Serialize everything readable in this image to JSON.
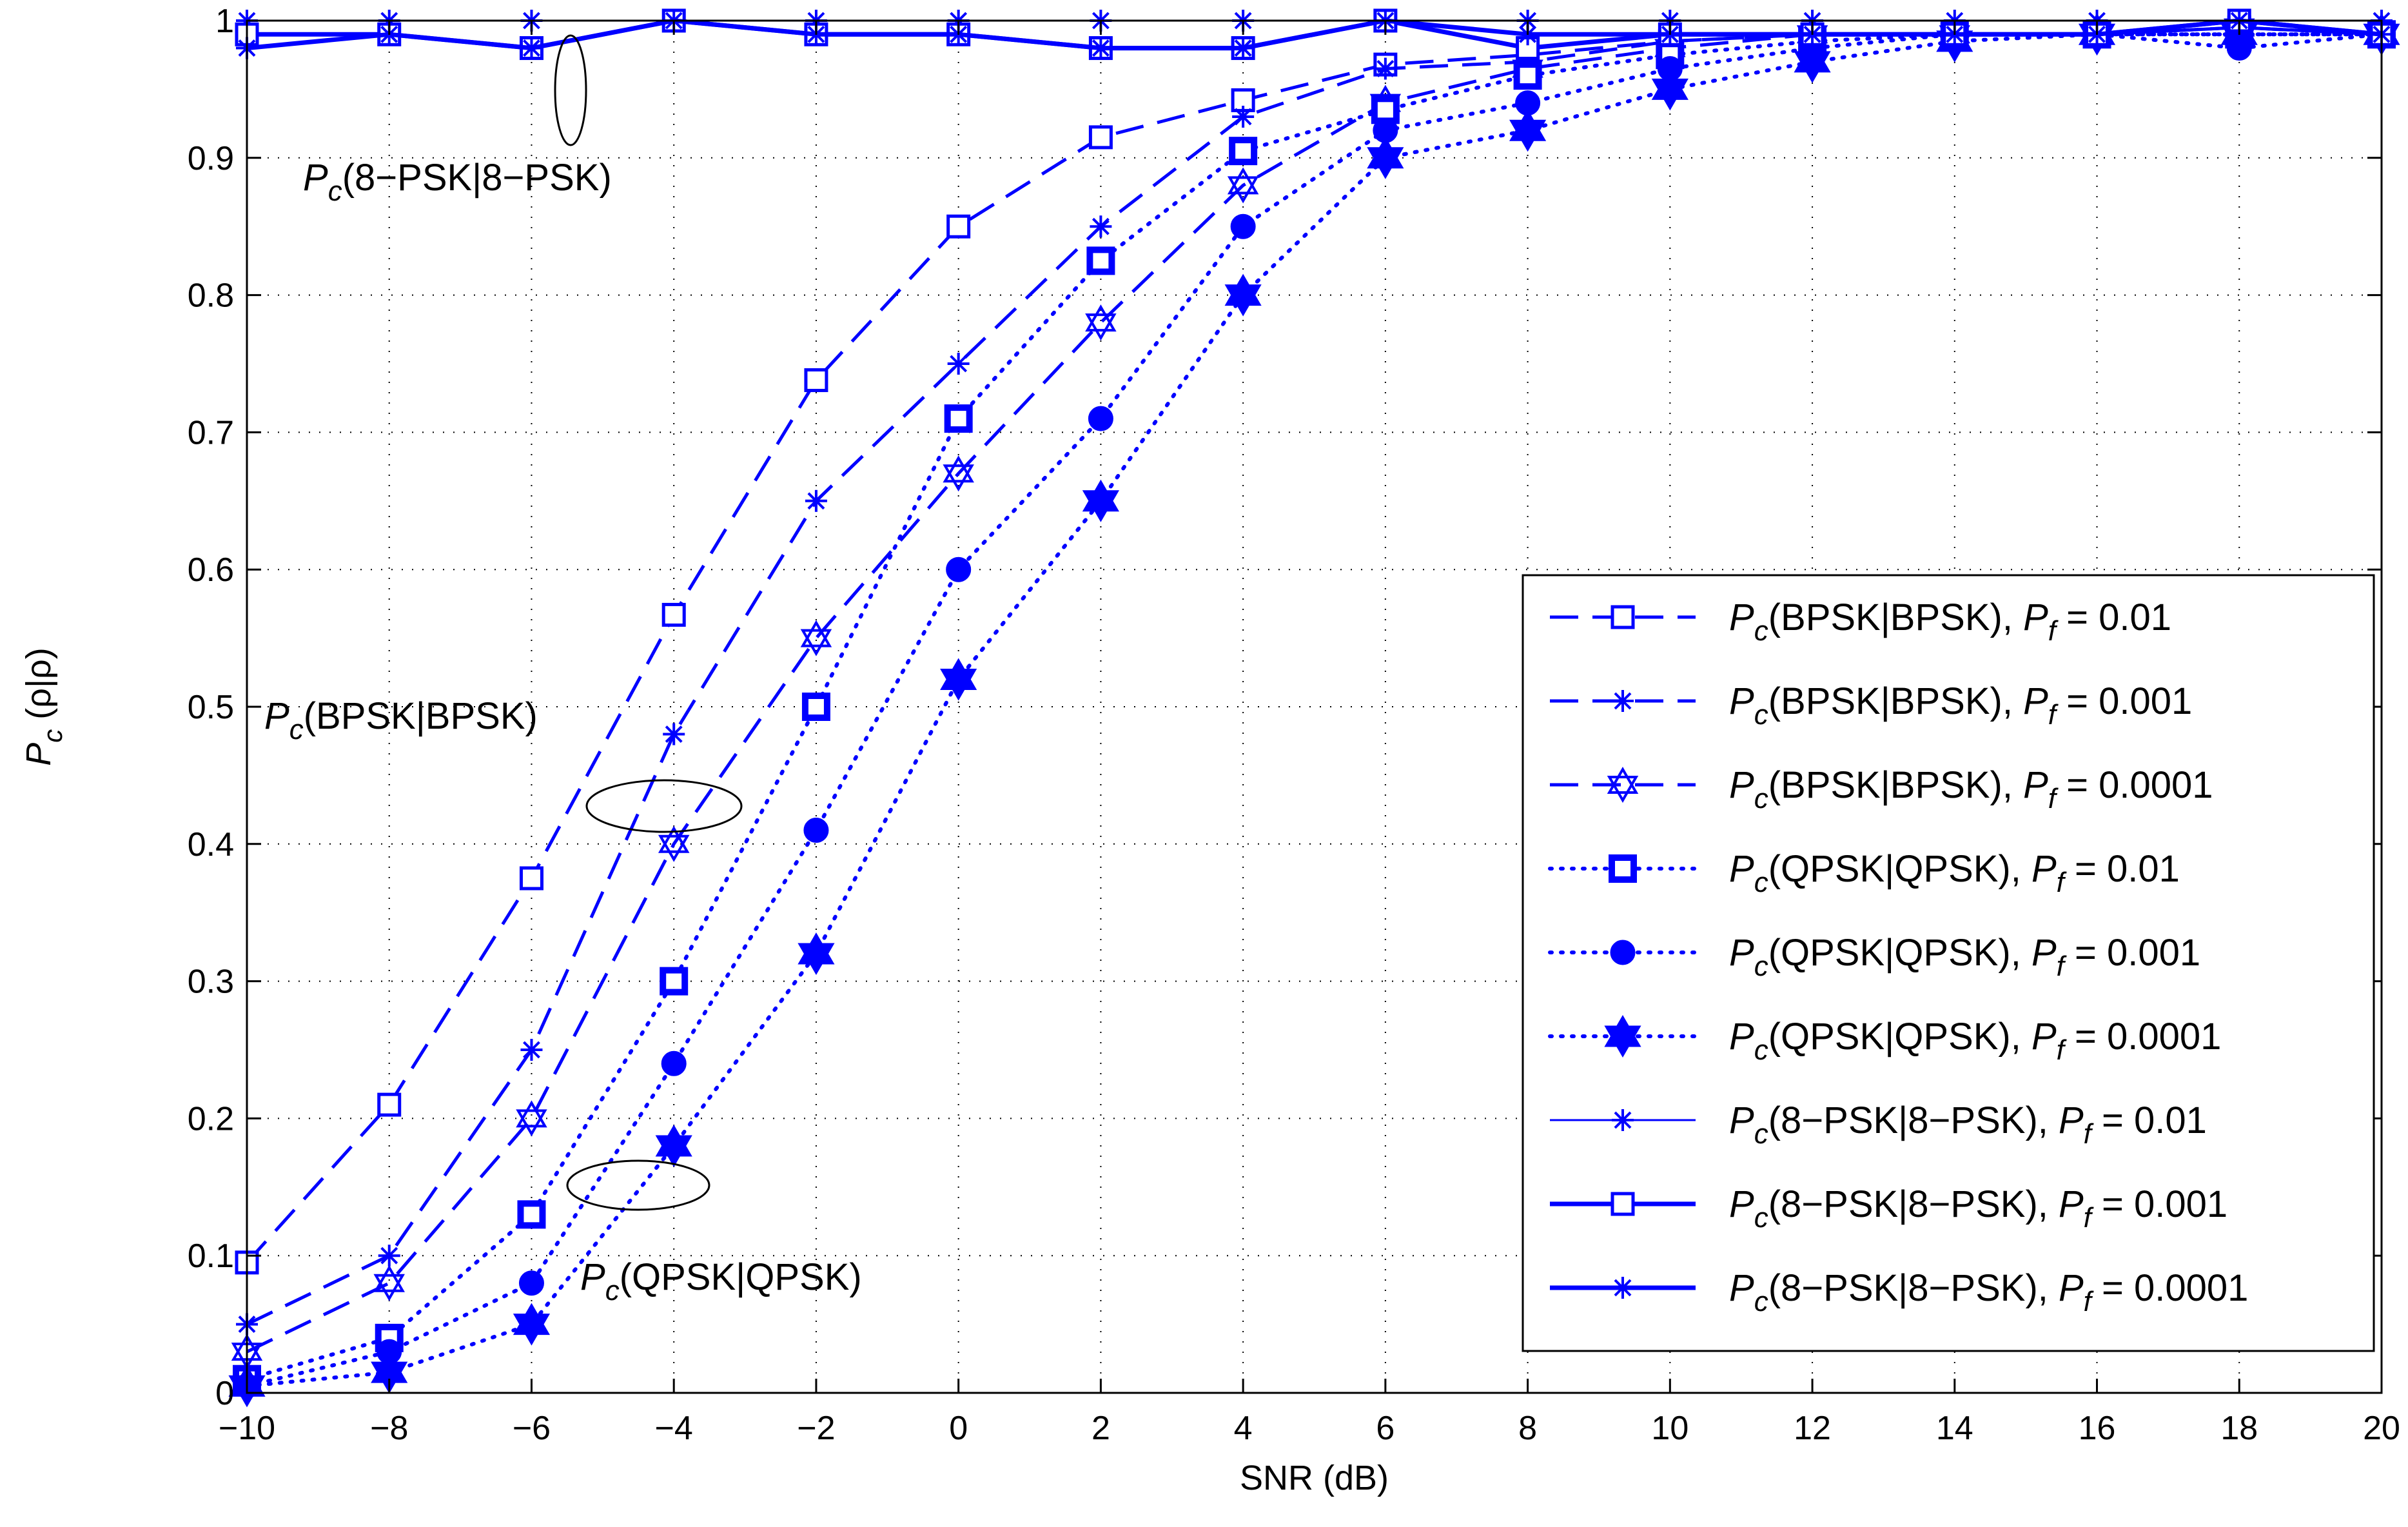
{
  "chart_data": {
    "type": "line",
    "title": "",
    "xlabel": "SNR (dB)",
    "ylabel_main": "P",
    "ylabel_sub": "c",
    "ylabel_rest": " (ρ|ρ)",
    "xlim": [
      -10,
      20
    ],
    "ylim": [
      0,
      1
    ],
    "x": [
      -10,
      -8,
      -6,
      -4,
      -2,
      0,
      2,
      4,
      6,
      8,
      10,
      12,
      14,
      16,
      18,
      20
    ],
    "xticks": [
      "−10",
      "−8",
      "−6",
      "−4",
      "−2",
      "0",
      "2",
      "4",
      "6",
      "8",
      "10",
      "12",
      "14",
      "16",
      "18",
      "20"
    ],
    "yticks": [
      "0",
      "0.1",
      "0.2",
      "0.3",
      "0.4",
      "0.5",
      "0.6",
      "0.7",
      "0.8",
      "0.9",
      "1"
    ],
    "grid": true,
    "legend_position": "bottom-right",
    "line_color": "#0000ff",
    "series": [
      {
        "pre": "P",
        "sub": "c",
        "mid": "(BPSK|BPSK), ",
        "pf": "P",
        "pfsub": "f",
        "val": " = 0.01",
        "style": "dashed",
        "marker": "square-open",
        "width": "thin",
        "values": [
          0.095,
          0.21,
          0.375,
          0.567,
          0.738,
          0.85,
          0.915,
          0.942,
          0.968,
          0.975,
          0.985,
          0.99,
          0.99,
          0.99,
          0.995,
          0.99
        ]
      },
      {
        "pre": "P",
        "sub": "c",
        "mid": "(BPSK|BPSK), ",
        "pf": "P",
        "pfsub": "f",
        "val": " = 0.001",
        "style": "dashed",
        "marker": "asterisk",
        "width": "thin",
        "values": [
          0.05,
          0.1,
          0.25,
          0.48,
          0.65,
          0.75,
          0.85,
          0.93,
          0.965,
          0.97,
          0.985,
          0.99,
          0.99,
          0.99,
          0.995,
          0.99
        ]
      },
      {
        "pre": "P",
        "sub": "c",
        "mid": "(BPSK|BPSK), ",
        "pf": "P",
        "pfsub": "f",
        "val": " = 0.0001",
        "style": "dashed",
        "marker": "hexagram-open",
        "width": "thin",
        "values": [
          0.03,
          0.08,
          0.2,
          0.4,
          0.55,
          0.67,
          0.78,
          0.88,
          0.94,
          0.965,
          0.98,
          0.99,
          0.99,
          0.99,
          0.995,
          0.99
        ]
      },
      {
        "pre": "P",
        "sub": "c",
        "mid": "(QPSK|QPSK), ",
        "pf": "P",
        "pfsub": "f",
        "val": " = 0.01",
        "style": "dotted",
        "marker": "square-bold",
        "width": "thin",
        "values": [
          0.01,
          0.04,
          0.13,
          0.3,
          0.5,
          0.71,
          0.825,
          0.905,
          0.935,
          0.96,
          0.975,
          0.985,
          0.99,
          0.99,
          0.99,
          0.99
        ]
      },
      {
        "pre": "P",
        "sub": "c",
        "mid": "(QPSK|QPSK), ",
        "pf": "P",
        "pfsub": "f",
        "val": " = 0.001",
        "style": "dotted",
        "marker": "circle-filled",
        "width": "thin",
        "values": [
          0.005,
          0.03,
          0.08,
          0.24,
          0.41,
          0.6,
          0.71,
          0.85,
          0.92,
          0.94,
          0.965,
          0.98,
          0.99,
          0.99,
          0.98,
          0.99
        ]
      },
      {
        "pre": "P",
        "sub": "c",
        "mid": "(QPSK|QPSK), ",
        "pf": "P",
        "pfsub": "f",
        "val": " = 0.0001",
        "style": "dotted",
        "marker": "hexagram-filled",
        "width": "thin",
        "values": [
          0.005,
          0.015,
          0.05,
          0.18,
          0.32,
          0.52,
          0.65,
          0.8,
          0.9,
          0.92,
          0.95,
          0.97,
          0.985,
          0.99,
          0.99,
          0.99
        ]
      },
      {
        "pre": "P",
        "sub": "c",
        "mid": "(8−PSK|8−PSK), ",
        "pf": "P",
        "pfsub": "f",
        "val": " = 0.01",
        "style": "solid",
        "marker": "asterisk",
        "width": "thin",
        "values": [
          1.0,
          1.0,
          1.0,
          1.0,
          1.0,
          1.0,
          1.0,
          1.0,
          1.0,
          1.0,
          1.0,
          1.0,
          1.0,
          1.0,
          1.0,
          1.0
        ]
      },
      {
        "pre": "P",
        "sub": "c",
        "mid": "(8−PSK|8−PSK), ",
        "pf": "P",
        "pfsub": "f",
        "val": " = 0.001",
        "style": "solid",
        "marker": "square-open",
        "width": "thick",
        "values": [
          0.99,
          0.99,
          0.98,
          1.0,
          0.99,
          0.99,
          0.98,
          0.98,
          1.0,
          0.98,
          0.99,
          0.99,
          0.99,
          0.99,
          1.0,
          0.99
        ]
      },
      {
        "pre": "P",
        "sub": "c",
        "mid": "(8−PSK|8−PSK), ",
        "pf": "P",
        "pfsub": "f",
        "val": " = 0.0001",
        "style": "solid",
        "marker": "asterisk",
        "width": "thick",
        "values": [
          0.98,
          0.99,
          0.98,
          1.0,
          0.99,
          0.99,
          0.98,
          0.98,
          1.0,
          0.99,
          0.99,
          0.99,
          0.99,
          0.99,
          1.0,
          0.99
        ]
      }
    ],
    "annotations": [
      {
        "id": "ann-8psk",
        "pre": "P",
        "sub": "c",
        "rest": "(8−PSK|8−PSK)"
      },
      {
        "id": "ann-bpsk",
        "pre": "P",
        "sub": "c",
        "rest": "(BPSK|BPSK)"
      },
      {
        "id": "ann-qpsk",
        "pre": "P",
        "sub": "c",
        "rest": "(QPSK|QPSK)"
      }
    ]
  }
}
